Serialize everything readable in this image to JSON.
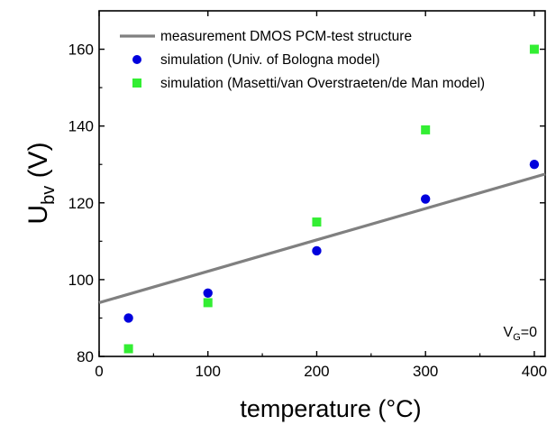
{
  "chart_data": {
    "type": "scatter",
    "xlabel": "temperature (°C)",
    "ylabel_main": "U",
    "ylabel_sub": "bv",
    "ylabel_unit": " (V)",
    "xlim": [
      0,
      410
    ],
    "ylim": [
      80,
      170
    ],
    "x_ticks": [
      0,
      100,
      200,
      300,
      400
    ],
    "y_ticks": [
      80,
      100,
      120,
      140,
      160
    ],
    "grid": false,
    "legend_position": "top-left",
    "annotation": {
      "main": "V",
      "sub": "G",
      "rest": "=0"
    },
    "series": [
      {
        "name": "measurement DMOS PCM-test structure",
        "kind": "line",
        "color": "#808080",
        "x": [
          0,
          410
        ],
        "y": [
          94,
          127.5
        ]
      },
      {
        "name": "simulation (Univ. of Bologna model)",
        "kind": "circle",
        "color": "#0000dd",
        "x": [
          27,
          100,
          200,
          300,
          400
        ],
        "y": [
          90,
          96.5,
          107.5,
          121,
          130
        ]
      },
      {
        "name": "simulation (Masetti/van Overstraeten/de Man model)",
        "kind": "square",
        "color": "#33ee33",
        "x": [
          27,
          100,
          200,
          300,
          400
        ],
        "y": [
          82,
          94,
          115,
          139,
          160
        ]
      }
    ]
  }
}
